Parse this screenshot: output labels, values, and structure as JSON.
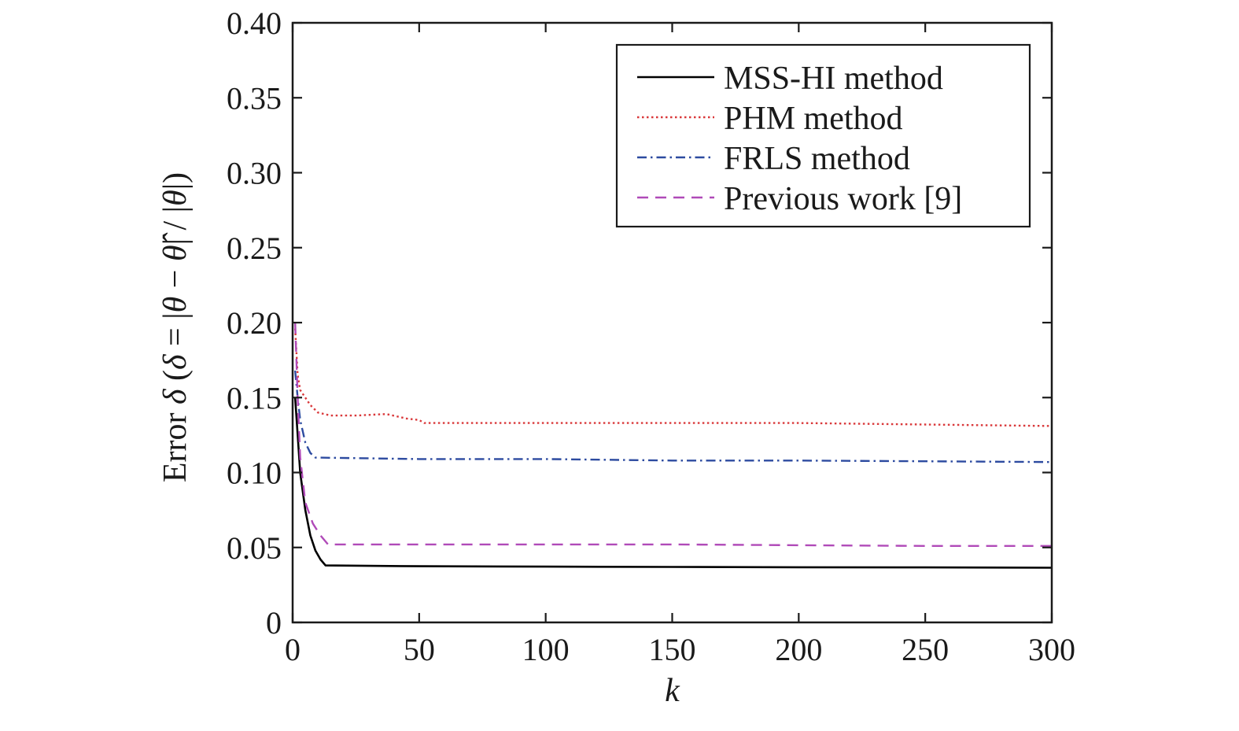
{
  "chart_data": {
    "type": "line",
    "xlabel": "k",
    "ylabel_parts": [
      "Error ",
      "δ",
      " (",
      "δ",
      " = |",
      "θ",
      " − ",
      "θ̂",
      "| / |",
      "θ",
      "|)"
    ],
    "xlim": [
      0,
      300
    ],
    "ylim": [
      0,
      0.4
    ],
    "xticks": [
      0,
      50,
      100,
      150,
      200,
      250,
      300
    ],
    "xtick_labels": [
      "0",
      "50",
      "100",
      "150",
      "200",
      "250",
      "300"
    ],
    "yticks": [
      0,
      0.05,
      0.1,
      0.15,
      0.2,
      0.25,
      0.3,
      0.35,
      0.4
    ],
    "ytick_labels": [
      "0",
      "0.05",
      "0.10",
      "0.15",
      "0.20",
      "0.25",
      "0.30",
      "0.35",
      "0.40"
    ],
    "grid": false,
    "legend_position": "top-right",
    "series": [
      {
        "name": "MSS-HI method",
        "color": "#000000",
        "dash": "solid",
        "points": [
          [
            1,
            0.15
          ],
          [
            2,
            0.125
          ],
          [
            3,
            0.1
          ],
          [
            5,
            0.075
          ],
          [
            7,
            0.058
          ],
          [
            9,
            0.048
          ],
          [
            11,
            0.042
          ],
          [
            13,
            0.038
          ],
          [
            50,
            0.0375
          ],
          [
            100,
            0.0372
          ],
          [
            150,
            0.037
          ],
          [
            200,
            0.0368
          ],
          [
            250,
            0.0367
          ],
          [
            300,
            0.0365
          ]
        ]
      },
      {
        "name": "PHM method",
        "color": "#d9383a",
        "dash": "dotted",
        "points": [
          [
            1,
            0.196
          ],
          [
            2,
            0.165
          ],
          [
            3,
            0.155
          ],
          [
            5,
            0.15
          ],
          [
            7,
            0.145
          ],
          [
            10,
            0.14
          ],
          [
            15,
            0.138
          ],
          [
            25,
            0.138
          ],
          [
            37,
            0.139
          ],
          [
            45,
            0.136
          ],
          [
            50,
            0.135
          ],
          [
            52,
            0.133
          ],
          [
            100,
            0.133
          ],
          [
            150,
            0.133
          ],
          [
            200,
            0.133
          ],
          [
            250,
            0.132
          ],
          [
            300,
            0.131
          ]
        ]
      },
      {
        "name": "FRLS method",
        "color": "#2d4ba0",
        "dash": "dashdot",
        "points": [
          [
            1,
            0.168
          ],
          [
            2,
            0.15
          ],
          [
            3,
            0.135
          ],
          [
            5,
            0.12
          ],
          [
            7,
            0.113
          ],
          [
            9,
            0.11
          ],
          [
            50,
            0.109
          ],
          [
            100,
            0.109
          ],
          [
            150,
            0.108
          ],
          [
            200,
            0.108
          ],
          [
            250,
            0.1075
          ],
          [
            300,
            0.107
          ]
        ]
      },
      {
        "name": "Previous work [9]",
        "color": "#b04ab8",
        "dash": "dashed",
        "points": [
          [
            1,
            0.2
          ],
          [
            2,
            0.15
          ],
          [
            3,
            0.11
          ],
          [
            5,
            0.08
          ],
          [
            8,
            0.066
          ],
          [
            11,
            0.058
          ],
          [
            14,
            0.052
          ],
          [
            50,
            0.052
          ],
          [
            100,
            0.052
          ],
          [
            150,
            0.052
          ],
          [
            200,
            0.0515
          ],
          [
            250,
            0.051
          ],
          [
            300,
            0.051
          ]
        ]
      }
    ]
  }
}
